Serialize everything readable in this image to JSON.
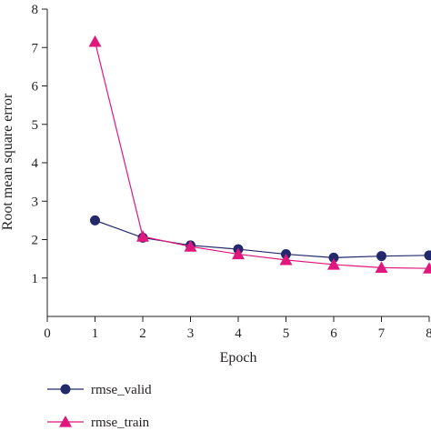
{
  "chart_data": {
    "type": "line",
    "title": "",
    "xlabel": "Epoch",
    "ylabel": "Root mean square error",
    "xlim": [
      0,
      8
    ],
    "ylim": [
      0,
      8
    ],
    "xticks": [
      "0",
      "1",
      "2",
      "3",
      "4",
      "5",
      "6",
      "7",
      "8"
    ],
    "yticks": [
      "1",
      "2",
      "3",
      "4",
      "5",
      "6",
      "7",
      "8"
    ],
    "x": [
      1,
      2,
      3,
      4,
      5,
      6,
      7,
      8
    ],
    "series": [
      {
        "name": "rmse_valid",
        "marker": "circle",
        "color": "#232a6b",
        "values": [
          2.5,
          2.05,
          1.85,
          1.75,
          1.62,
          1.53,
          1.57,
          1.59
        ]
      },
      {
        "name": "rmse_train",
        "marker": "triangle",
        "color": "#e0187e",
        "values": [
          7.15,
          2.08,
          1.82,
          1.62,
          1.47,
          1.35,
          1.27,
          1.25
        ]
      }
    ],
    "grid": false,
    "legend_position": "bottom-left"
  }
}
